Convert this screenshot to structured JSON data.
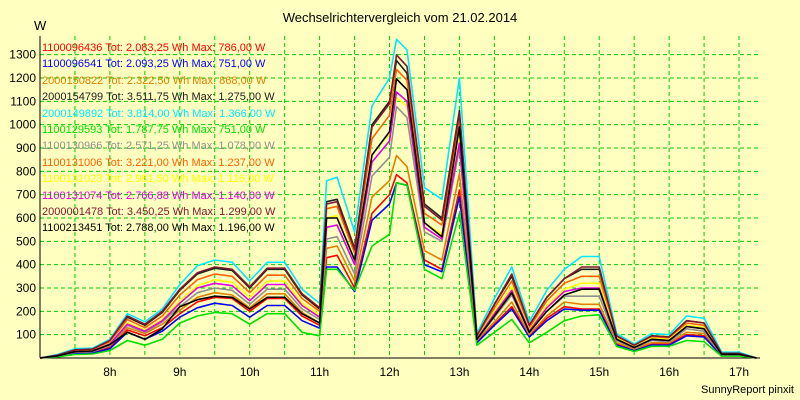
{
  "title": "Wechselrichtervergleich vom 21.02.2014",
  "unit": "W",
  "footer": "SunnyReport pinxit",
  "chart_data": {
    "type": "line",
    "title": "Wechselrichtervergleich vom 21.02.2014",
    "ylabel": "W",
    "xlabel": "",
    "xlim": [
      7.0,
      17.3
    ],
    "ylim": [
      0,
      1380
    ],
    "yticks": [
      100,
      200,
      300,
      400,
      500,
      600,
      700,
      800,
      900,
      1000,
      1100,
      1200,
      1300
    ],
    "xticks": [
      {
        "value": 8,
        "label": "8h"
      },
      {
        "value": 9,
        "label": "9h"
      },
      {
        "value": 10,
        "label": "10h"
      },
      {
        "value": 11,
        "label": "11h"
      },
      {
        "value": 12,
        "label": "12h"
      },
      {
        "value": 13,
        "label": "13h"
      },
      {
        "value": 14,
        "label": "14h"
      },
      {
        "value": 15,
        "label": "15h"
      },
      {
        "value": 16,
        "label": "16h"
      },
      {
        "value": 17,
        "label": "17h"
      }
    ],
    "grid": true,
    "legend_position": "top-left",
    "x": [
      7.0,
      7.25,
      7.5,
      7.75,
      8.0,
      8.25,
      8.5,
      8.75,
      9.0,
      9.25,
      9.5,
      9.75,
      10.0,
      10.25,
      10.5,
      10.75,
      11.0,
      11.1,
      11.25,
      11.5,
      11.75,
      12.0,
      12.1,
      12.25,
      12.5,
      12.75,
      13.0,
      13.25,
      13.5,
      13.75,
      14.0,
      14.25,
      14.5,
      14.75,
      15.0,
      15.25,
      15.5,
      15.75,
      16.0,
      16.25,
      16.5,
      16.75,
      17.0,
      17.25
    ],
    "series": [
      {
        "name": "1100096436",
        "label": "Tot: 2.083,25 Wh Max: 786,00 W",
        "color": "#ff0000",
        "values": [
          0,
          8,
          22,
          25,
          45,
          120,
          95,
          130,
          190,
          240,
          260,
          255,
          200,
          255,
          255,
          180,
          140,
          430,
          440,
          300,
          620,
          700,
          786,
          750,
          420,
          380,
          720,
          70,
          145,
          220,
          95,
          170,
          220,
          210,
          210,
          60,
          35,
          60,
          60,
          100,
          95,
          14,
          14,
          0
        ]
      },
      {
        "name": "1100096541",
        "label": "Tot: 2.093,25 Wh Max: 751,00 W",
        "color": "#0000ff",
        "values": [
          0,
          6,
          18,
          20,
          40,
          110,
          80,
          115,
          175,
          215,
          235,
          225,
          175,
          225,
          225,
          160,
          128,
          390,
          390,
          285,
          590,
          660,
          751,
          740,
          400,
          370,
          690,
          65,
          140,
          210,
          90,
          160,
          210,
          205,
          205,
          55,
          32,
          55,
          55,
          95,
          90,
          10,
          10,
          0
        ]
      },
      {
        "name": "2000150822",
        "label": "Tot: 2.322,50 Wh Max: 868,00 W",
        "color": "#e08000",
        "values": [
          0,
          9,
          25,
          28,
          52,
          130,
          105,
          145,
          205,
          260,
          280,
          270,
          215,
          275,
          275,
          195,
          150,
          470,
          480,
          330,
          690,
          760,
          868,
          820,
          460,
          420,
          790,
          75,
          155,
          240,
          100,
          180,
          240,
          230,
          230,
          65,
          38,
          65,
          65,
          110,
          105,
          15,
          15,
          0
        ]
      },
      {
        "name": "2000154799",
        "label": "Tot: 3.511,75 Wh Max: 1.275,00 W",
        "color": "#202020",
        "values": [
          0,
          12,
          35,
          38,
          75,
          175,
          140,
          195,
          290,
          360,
          385,
          375,
          300,
          380,
          380,
          270,
          210,
          670,
          680,
          470,
          1000,
          1100,
          1275,
          1220,
          660,
          600,
          1060,
          95,
          230,
          350,
          140,
          260,
          340,
          380,
          380,
          95,
          55,
          95,
          90,
          160,
          150,
          20,
          20,
          0
        ]
      },
      {
        "name": "2000149892",
        "label": "Tot: 3.814,00 Wh Max: 1.366,00 W",
        "color": "#00e8ff",
        "values": [
          0,
          15,
          40,
          42,
          80,
          190,
          155,
          210,
          315,
          395,
          420,
          410,
          330,
          410,
          410,
          295,
          235,
          760,
          775,
          540,
          1080,
          1200,
          1366,
          1320,
          730,
          680,
          1200,
          105,
          255,
          390,
          155,
          290,
          380,
          435,
          435,
          105,
          60,
          105,
          100,
          180,
          170,
          25,
          25,
          0
        ]
      },
      {
        "name": "1100129593",
        "label": "Tot: 1.787,75 Wh Max: 751,00 W",
        "color": "#00e000",
        "values": [
          0,
          5,
          15,
          17,
          32,
          75,
          55,
          80,
          150,
          180,
          195,
          190,
          145,
          190,
          190,
          110,
          95,
          380,
          380,
          290,
          480,
          530,
          751,
          740,
          380,
          340,
          620,
          55,
          110,
          165,
          65,
          110,
          160,
          180,
          185,
          50,
          28,
          50,
          50,
          75,
          70,
          8,
          8,
          0
        ]
      },
      {
        "name": "1100130966",
        "label": "Tot: 2.571,25 Wh Max: 1.078,00 W",
        "color": "#909090",
        "values": [
          0,
          8,
          25,
          27,
          55,
          140,
          110,
          155,
          220,
          280,
          300,
          290,
          230,
          295,
          295,
          210,
          165,
          510,
          520,
          360,
          780,
          860,
          1078,
          1030,
          540,
          500,
          900,
          80,
          175,
          270,
          110,
          200,
          265,
          265,
          265,
          75,
          42,
          75,
          70,
          125,
          115,
          15,
          15,
          0
        ]
      },
      {
        "name": "1100131006",
        "label": "Tot: 3.221,00 Wh Max: 1.237,00 W",
        "color": "#ff6000",
        "values": [
          0,
          10,
          32,
          35,
          70,
          165,
          130,
          180,
          270,
          335,
          360,
          350,
          280,
          355,
          355,
          255,
          200,
          640,
          650,
          450,
          940,
          1040,
          1237,
          1190,
          620,
          570,
          1010,
          90,
          215,
          330,
          130,
          245,
          320,
          350,
          350,
          90,
          50,
          90,
          85,
          150,
          140,
          18,
          18,
          0
        ]
      },
      {
        "name": "1100131023",
        "label": "Tot: 2.981,50 Wh Max: 1.116,00 W",
        "color": "#ffff00",
        "values": [
          0,
          9,
          28,
          31,
          62,
          150,
          120,
          165,
          245,
          310,
          335,
          325,
          260,
          330,
          330,
          235,
          185,
          600,
          610,
          420,
          870,
          960,
          1116,
          1080,
          580,
          530,
          940,
          85,
          200,
          305,
          120,
          225,
          295,
          320,
          320,
          85,
          48,
          85,
          80,
          140,
          130,
          17,
          17,
          0
        ]
      },
      {
        "name": "1100131074",
        "label": "Tot: 2.766,88 Wh Max: 1.140,00 W",
        "color": "#e000e0",
        "values": [
          0,
          9,
          27,
          30,
          60,
          145,
          115,
          160,
          235,
          300,
          320,
          310,
          245,
          315,
          315,
          225,
          175,
          560,
          570,
          400,
          840,
          930,
          1140,
          1100,
          560,
          510,
          920,
          82,
          190,
          290,
          115,
          215,
          285,
          300,
          300,
          80,
          45,
          80,
          75,
          135,
          125,
          16,
          16,
          0
        ]
      },
      {
        "name": "2000001478",
        "label": "Tot: 3.450,25 Wh Max: 1.299,00 W",
        "color": "#801830",
        "values": [
          0,
          12,
          35,
          38,
          75,
          180,
          145,
          200,
          295,
          365,
          390,
          380,
          305,
          385,
          385,
          275,
          215,
          660,
          670,
          465,
          990,
          1090,
          1299,
          1250,
          650,
          590,
          1050,
          95,
          230,
          360,
          140,
          260,
          340,
          390,
          390,
          95,
          55,
          95,
          90,
          160,
          150,
          20,
          20,
          0
        ]
      },
      {
        "name": "1100213451",
        "label": "Tot: 2.788,00 Wh Max: 1.196,00 W",
        "color": "#000000",
        "values": [
          0,
          9,
          27,
          30,
          58,
          110,
          80,
          125,
          220,
          250,
          265,
          260,
          210,
          260,
          260,
          190,
          150,
          600,
          600,
          420,
          870,
          970,
          1196,
          1150,
          580,
          520,
          990,
          80,
          180,
          280,
          110,
          200,
          270,
          295,
          295,
          80,
          45,
          80,
          75,
          135,
          125,
          16,
          16,
          0
        ]
      }
    ]
  }
}
